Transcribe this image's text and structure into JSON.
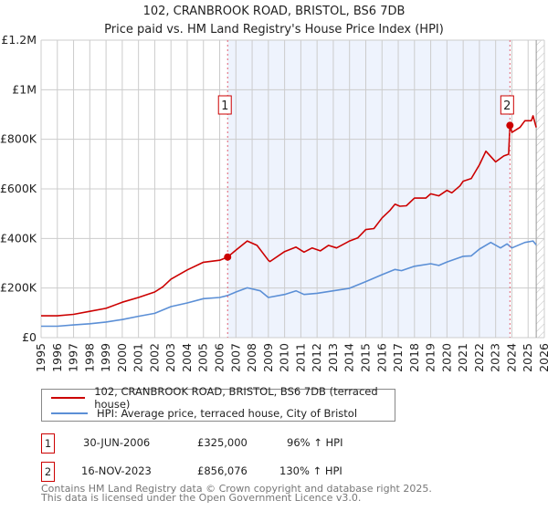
{
  "title": "102, CRANBROOK ROAD, BRISTOL, BS6 7DB",
  "subtitle": "Price paid vs. HM Land Registry's House Price Index (HPI)",
  "colors": {
    "property": "#cc0000",
    "hpi": "#5b8fd6",
    "shade": "#eef3fd",
    "grid": "#cccccc"
  },
  "chart_data": {
    "type": "line",
    "title": "102, CRANBROOK ROAD, BRISTOL, BS6 7DB",
    "xlim": [
      1995,
      2026
    ],
    "ylim": [
      0,
      1200000
    ],
    "x_ticks": [
      "1995",
      "1996",
      "1997",
      "1998",
      "1999",
      "2000",
      "2001",
      "2002",
      "2003",
      "2004",
      "2005",
      "2006",
      "2007",
      "2008",
      "2009",
      "2010",
      "2011",
      "2012",
      "2013",
      "2014",
      "2015",
      "2016",
      "2017",
      "2018",
      "2019",
      "2020",
      "2021",
      "2022",
      "2023",
      "2024",
      "2025",
      "2026"
    ],
    "y_ticks": [
      {
        "value": 0,
        "label": "£0"
      },
      {
        "value": 200000,
        "label": "£200K"
      },
      {
        "value": 400000,
        "label": "£400K"
      },
      {
        "value": 600000,
        "label": "£600K"
      },
      {
        "value": 800000,
        "label": "£800K"
      },
      {
        "value": 1000000,
        "label": "£1M"
      },
      {
        "value": 1200000,
        "label": "£1.2M"
      }
    ],
    "shaded_range": [
      2006.49,
      2023.88
    ],
    "forecast_hatch_from": 2025.5,
    "series": [
      {
        "name": "102, CRANBROOK ROAD, BRISTOL, BS6 7DB (terraced house)",
        "color": "#cc0000",
        "x": [
          1995,
          1996,
          1997,
          1998,
          1999,
          2000,
          2001,
          2002,
          2002.5,
          2003,
          2004,
          2005,
          2006,
          2006.49,
          2007,
          2007.7,
          2008.3,
          2009,
          2009.1,
          2010,
          2010.7,
          2011.2,
          2011.7,
          2012.2,
          2012.7,
          2013.2,
          2014,
          2014.5,
          2015,
          2015.5,
          2016,
          2016.5,
          2016.8,
          2017.1,
          2017.5,
          2018,
          2018.7,
          2019,
          2019.5,
          2020,
          2020.3,
          2020.8,
          2021,
          2021.5,
          2022,
          2022.4,
          2023,
          2023.5,
          2023.8,
          2023.88,
          2024,
          2024.5,
          2024.8,
          2025.2,
          2025.3,
          2025.5
        ],
        "y": [
          88000,
          88000,
          94000,
          106000,
          118000,
          143000,
          162000,
          184000,
          205000,
          236000,
          273000,
          304000,
          312000,
          325000,
          353000,
          390000,
          372000,
          312000,
          307000,
          347000,
          365000,
          345000,
          362000,
          350000,
          372000,
          362000,
          390000,
          402000,
          436000,
          440000,
          483000,
          514000,
          538000,
          530000,
          532000,
          563000,
          563000,
          580000,
          572000,
          594000,
          584000,
          612000,
          631000,
          642000,
          697000,
          752000,
          709000,
          733000,
          740000,
          856076,
          828000,
          848000,
          875000,
          875000,
          895000,
          848000
        ]
      },
      {
        "name": "HPI: Average price, terraced house, City of Bristol",
        "color": "#5b8fd6",
        "x": [
          1995,
          1996,
          1997,
          1998,
          1999,
          2000,
          2001,
          2002,
          2003,
          2004,
          2005,
          2006,
          2006.5,
          2007,
          2007.7,
          2008.5,
          2009,
          2010,
          2010.7,
          2011.2,
          2012,
          2013,
          2014,
          2015,
          2016,
          2016.8,
          2017.2,
          2018,
          2019,
          2019.5,
          2020,
          2021,
          2021.5,
          2022,
          2022.7,
          2023.3,
          2023.7,
          2024,
          2024.8,
          2025.3,
          2025.5
        ],
        "y": [
          46000,
          46000,
          51000,
          56000,
          63000,
          73000,
          86000,
          98000,
          125000,
          140000,
          157000,
          162000,
          170000,
          184000,
          201000,
          189000,
          162000,
          174000,
          189000,
          174000,
          179000,
          189000,
          199000,
          226000,
          254000,
          275000,
          270000,
          288000,
          298000,
          291000,
          305000,
          328000,
          330000,
          357000,
          384000,
          362000,
          378000,
          362000,
          384000,
          390000,
          374000
        ]
      }
    ],
    "annotations": [
      {
        "label": "1",
        "x": 2006.49,
        "y": 325000
      },
      {
        "label": "2",
        "x": 2023.88,
        "y": 856076
      }
    ]
  },
  "legend": {
    "property": "102, CRANBROOK ROAD, BRISTOL, BS6 7DB (terraced house)",
    "hpi": "HPI: Average price, terraced house, City of Bristol"
  },
  "transactions": [
    {
      "num": "1",
      "date": "30-JUN-2006",
      "price": "£325,000",
      "hpi": "96% ↑ HPI"
    },
    {
      "num": "2",
      "date": "16-NOV-2023",
      "price": "£856,076",
      "hpi": "130% ↑ HPI"
    }
  ],
  "footer": {
    "line1": "Contains HM Land Registry data © Crown copyright and database right 2025.",
    "line2": "This data is licensed under the Open Government Licence v3.0."
  }
}
